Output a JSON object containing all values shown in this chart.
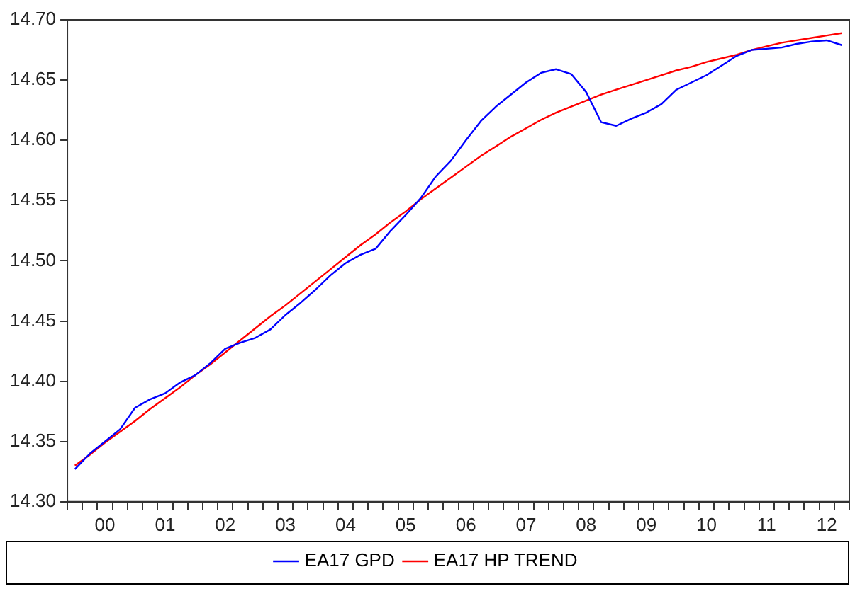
{
  "chart_data": {
    "type": "line",
    "legend": "bottom",
    "marker": "none",
    "line_style": "solid",
    "categories": [
      null,
      null,
      "00",
      null,
      null,
      null,
      "01",
      null,
      null,
      null,
      "02",
      null,
      null,
      null,
      "03",
      null,
      null,
      null,
      "04",
      null,
      null,
      null,
      "05",
      null,
      null,
      null,
      "06",
      null,
      null,
      null,
      "07",
      null,
      null,
      null,
      "08",
      null,
      null,
      null,
      "09",
      null,
      null,
      null,
      "10",
      null,
      null,
      null,
      "11",
      null,
      null,
      null,
      "12",
      null
    ],
    "ylim": [
      14.3,
      14.7
    ],
    "yticks": [
      {
        "value": 14.3,
        "label": "14.30"
      },
      {
        "value": 14.35,
        "label": "14.35"
      },
      {
        "value": 14.4,
        "label": "14.40"
      },
      {
        "value": 14.45,
        "label": "14.45"
      },
      {
        "value": 14.5,
        "label": "14.50"
      },
      {
        "value": 14.55,
        "label": "14.55"
      },
      {
        "value": 14.6,
        "label": "14.60"
      },
      {
        "value": 14.65,
        "label": "14.65"
      },
      {
        "value": 14.7,
        "label": "14.70"
      }
    ],
    "series": [
      {
        "name": "EA17 GPD",
        "color": "#0000ff",
        "values": [
          14.327,
          14.34,
          14.35,
          14.36,
          14.378,
          14.385,
          14.39,
          14.399,
          14.405,
          14.415,
          14.427,
          14.432,
          14.436,
          14.443,
          14.455,
          14.465,
          14.476,
          14.488,
          14.498,
          14.505,
          14.51,
          14.525,
          14.538,
          14.552,
          14.57,
          14.583,
          14.6,
          14.616,
          14.628,
          14.638,
          14.648,
          14.656,
          14.659,
          14.655,
          14.64,
          14.615,
          14.612,
          14.618,
          14.623,
          14.63,
          14.642,
          14.648,
          14.654,
          14.662,
          14.67,
          14.675,
          14.676,
          14.677,
          14.68,
          14.682,
          14.683,
          14.679
        ]
      },
      {
        "name": "EA17 HP TREND",
        "color": "#ff0000",
        "values": [
          14.33,
          14.339,
          14.349,
          14.358,
          14.367,
          14.377,
          14.386,
          14.395,
          14.405,
          14.414,
          14.424,
          14.434,
          14.444,
          14.454,
          14.463,
          14.473,
          14.483,
          14.493,
          14.503,
          14.513,
          14.522,
          14.532,
          14.541,
          14.551,
          14.56,
          14.569,
          14.578,
          14.587,
          14.595,
          14.603,
          14.61,
          14.617,
          14.623,
          14.628,
          14.633,
          14.638,
          14.642,
          14.646,
          14.65,
          14.654,
          14.658,
          14.661,
          14.665,
          14.668,
          14.671,
          14.675,
          14.678,
          14.681,
          14.683,
          14.685,
          14.687,
          14.689
        ]
      }
    ]
  }
}
